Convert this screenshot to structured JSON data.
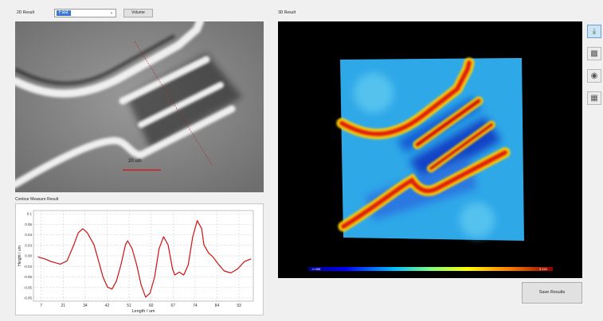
{
  "header": {
    "result_2d_label": "2D Result",
    "result_3d_label": "3D Result",
    "dropdown_value": "Fast",
    "volume_button": "Volume"
  },
  "image2d": {
    "scale_label": "20 um"
  },
  "contour": {
    "title": "Contour Measure Result"
  },
  "colorbar": {
    "min_label": "-0.068",
    "max_label": "0.115"
  },
  "toolbar": {
    "items": [
      "select-tool-icon",
      "image-tool-icon",
      "camera-tool-icon",
      "grid-tool-icon"
    ]
  },
  "save_button": "Save Results",
  "chart_data": {
    "type": "line",
    "xlabel": "Length / um",
    "ylabel": "Height / um",
    "x_ticks": [
      "7",
      "21",
      "34",
      "42",
      "51",
      "60",
      "67",
      "74",
      "84",
      "93"
    ],
    "y_ticks": [
      "0.1",
      "0.05",
      "0.03",
      "0.03",
      "0.00",
      "-0.03",
      "-0.05",
      "-0.05",
      "-0.05"
    ],
    "color": "#cc1111",
    "series": [
      {
        "points": [
          [
            2,
            0.0
          ],
          [
            5,
            -0.005
          ],
          [
            8,
            -0.012
          ],
          [
            12,
            -0.018
          ],
          [
            15,
            -0.01
          ],
          [
            18,
            0.03
          ],
          [
            20,
            0.06
          ],
          [
            22,
            0.07
          ],
          [
            24,
            0.06
          ],
          [
            27,
            0.03
          ],
          [
            29,
            -0.01
          ],
          [
            31,
            -0.05
          ],
          [
            33,
            -0.075
          ],
          [
            35,
            -0.08
          ],
          [
            37,
            -0.06
          ],
          [
            39,
            -0.02
          ],
          [
            41,
            0.03
          ],
          [
            42,
            0.04
          ],
          [
            44,
            0.02
          ],
          [
            46,
            -0.02
          ],
          [
            48,
            -0.07
          ],
          [
            50,
            -0.1
          ],
          [
            52,
            -0.09
          ],
          [
            54,
            -0.05
          ],
          [
            56,
            0.02
          ],
          [
            58,
            0.05
          ],
          [
            60,
            0.03
          ],
          [
            62,
            -0.03
          ],
          [
            63,
            -0.045
          ],
          [
            65,
            -0.038
          ],
          [
            67,
            -0.045
          ],
          [
            69,
            -0.02
          ],
          [
            71,
            0.05
          ],
          [
            73,
            0.09
          ],
          [
            75,
            0.07
          ],
          [
            76,
            0.03
          ],
          [
            78,
            0.01
          ],
          [
            80,
            0.0
          ],
          [
            82,
            -0.015
          ],
          [
            85,
            -0.035
          ],
          [
            88,
            -0.04
          ],
          [
            91,
            -0.03
          ],
          [
            94,
            -0.012
          ],
          [
            97,
            -0.005
          ]
        ]
      }
    ],
    "xlim": [
      0,
      98
    ],
    "ylim": [
      -0.11,
      0.115
    ],
    "grid": true
  }
}
